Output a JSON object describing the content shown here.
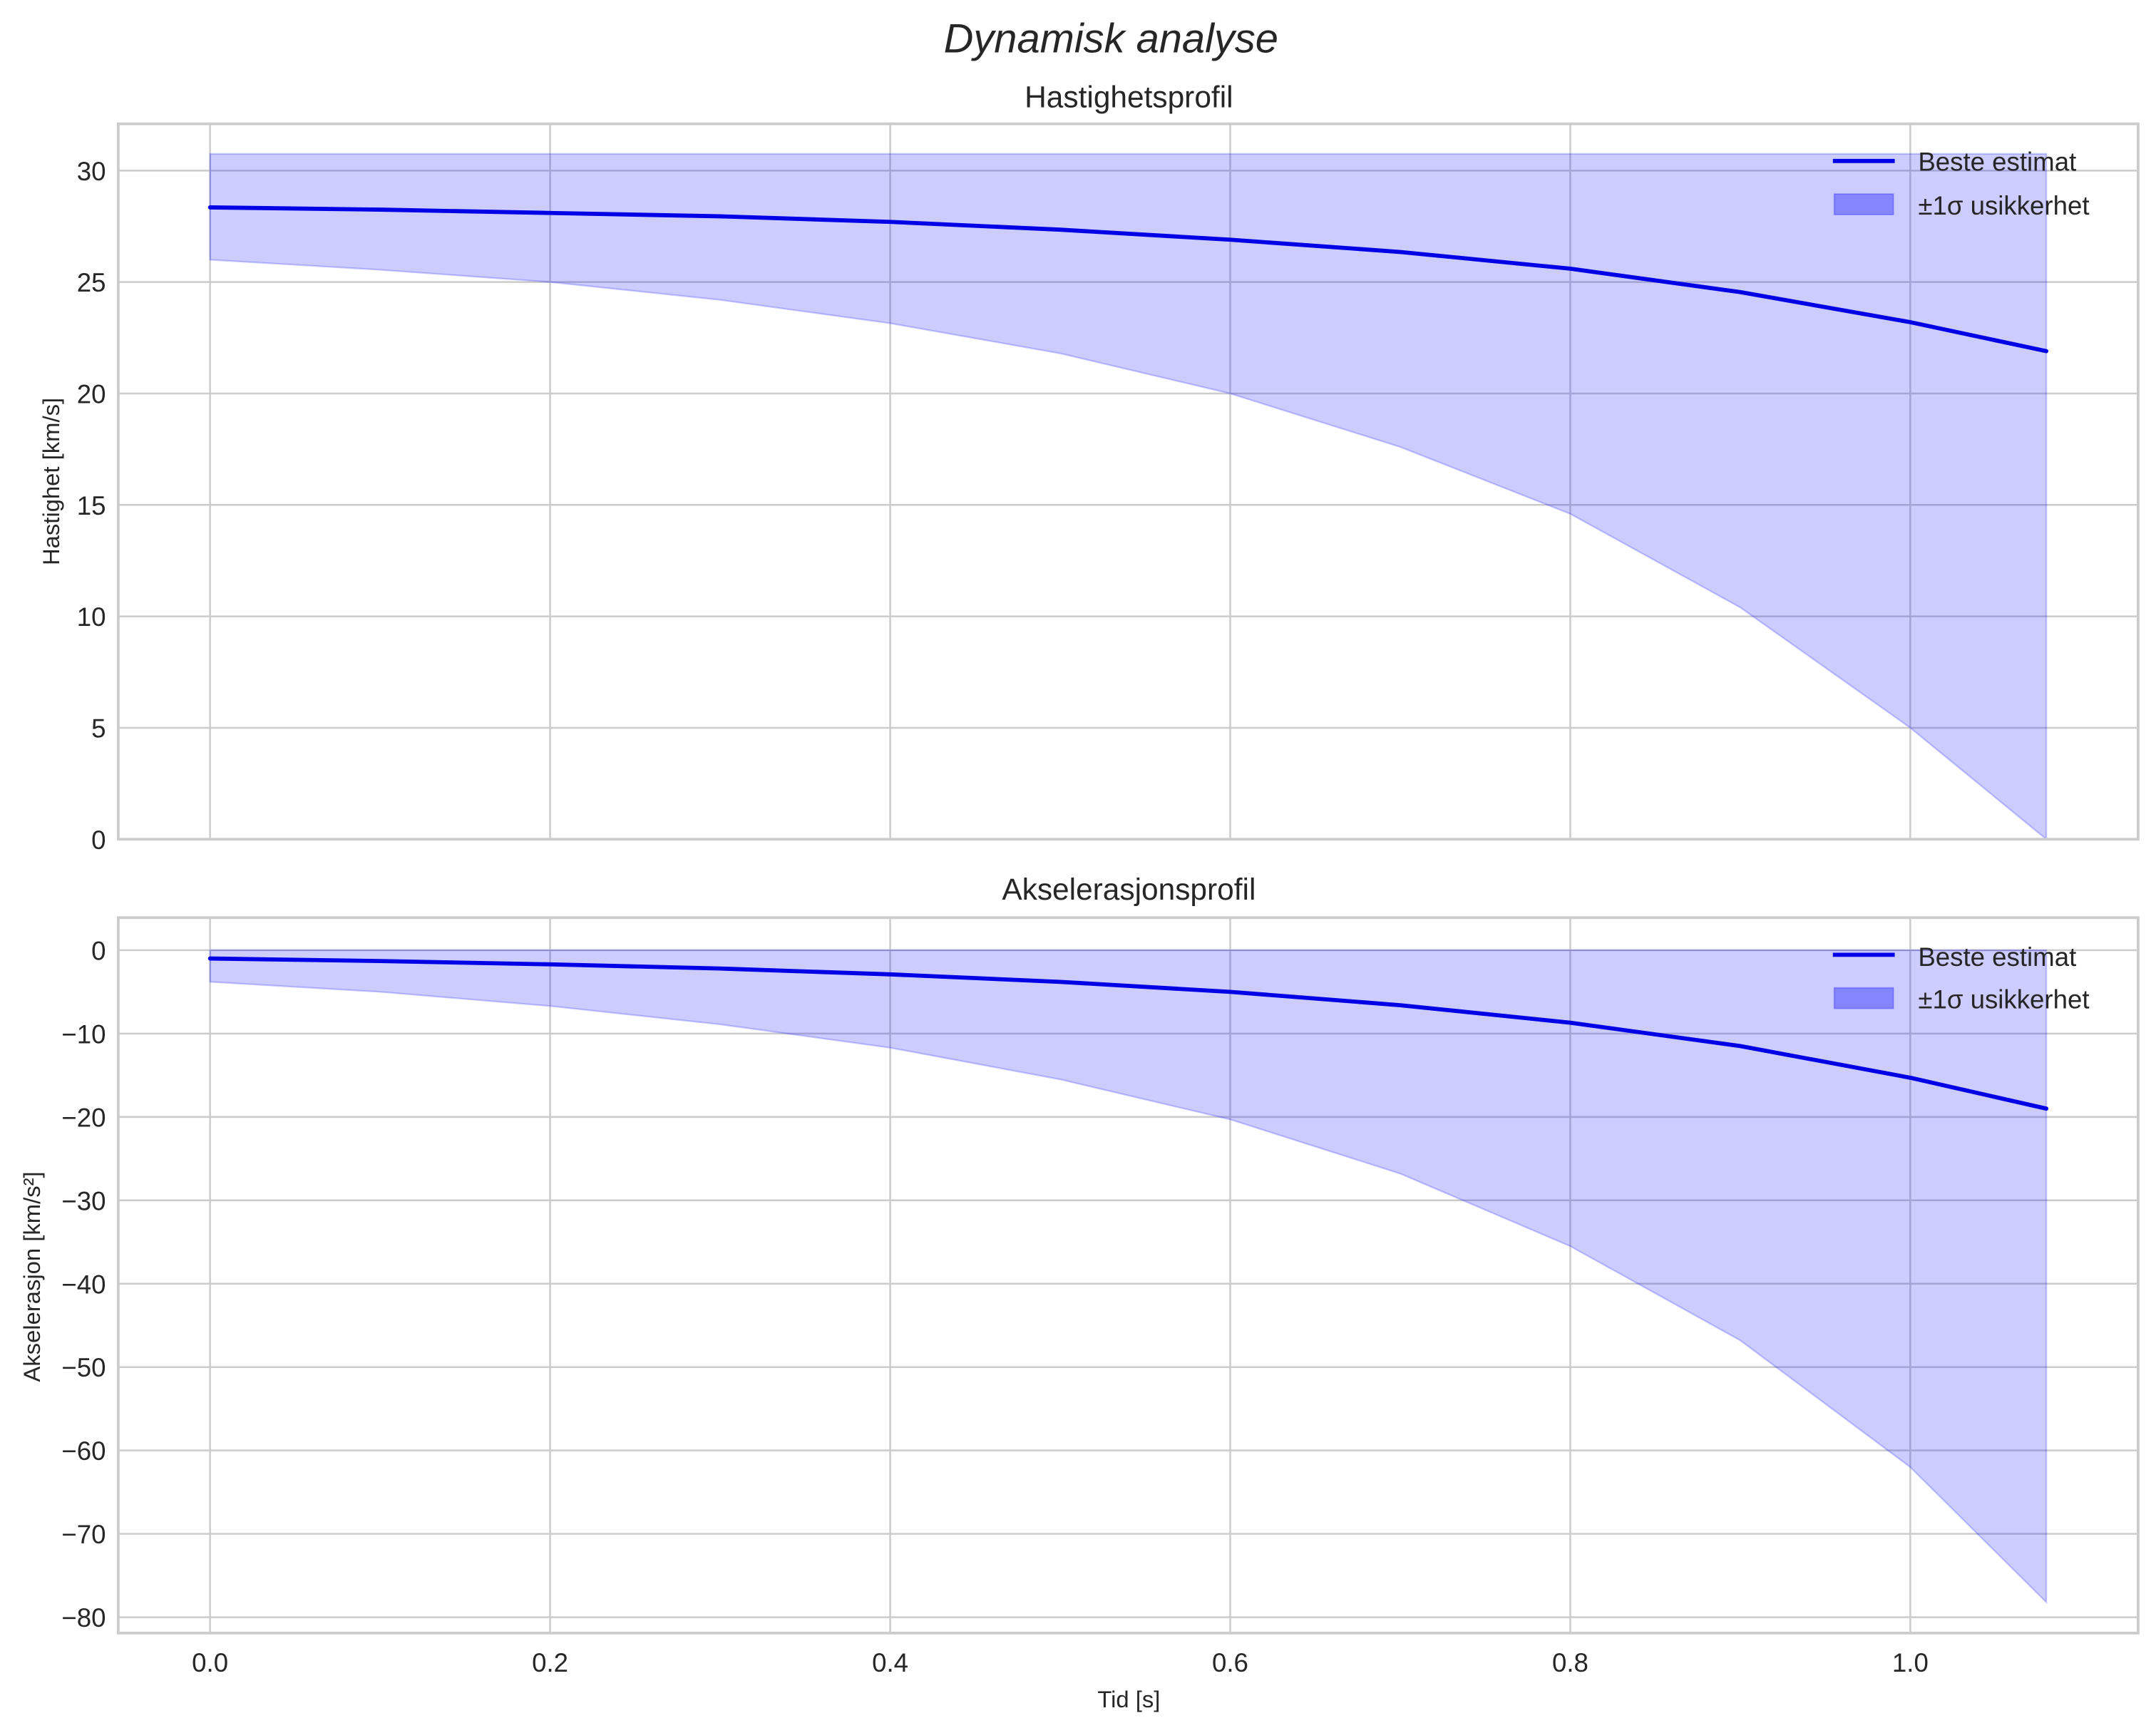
{
  "figure": {
    "suptitle": "Dynamisk analyse",
    "background": "#ffffff"
  },
  "colors": {
    "line": "#0000e6",
    "band_fill": "#0000ff",
    "band_alpha": 0.2,
    "grid": "#cccccc",
    "spine": "#cccccc",
    "text": "#262626"
  },
  "legend": {
    "items": [
      {
        "label": "Beste estimat",
        "type": "line"
      },
      {
        "label": "±1σ usikkerhet",
        "type": "patch"
      }
    ],
    "position": "upper right"
  },
  "chart_data": [
    {
      "type": "line",
      "title": "Hastighetsprofil",
      "xlabel": "",
      "ylabel": "Hastighet [km/s]",
      "xlim": [
        -0.054,
        1.134
      ],
      "ylim": [
        0,
        32.1
      ],
      "xticks": [
        0.0,
        0.2,
        0.4,
        0.6,
        0.8,
        1.0
      ],
      "xtick_labels": [
        "0.0",
        "0.2",
        "0.4",
        "0.6",
        "0.8",
        "1.0"
      ],
      "show_xtick_labels": false,
      "yticks": [
        0,
        5,
        10,
        15,
        20,
        25,
        30
      ],
      "ytick_labels": [
        "0",
        "5",
        "10",
        "15",
        "20",
        "25",
        "30"
      ],
      "grid": true,
      "legend_position": "upper right",
      "x": [
        0.0,
        0.1,
        0.2,
        0.3,
        0.4,
        0.5,
        0.6,
        0.7,
        0.8,
        0.9,
        1.0,
        1.08
      ],
      "series": [
        {
          "name": "Beste estimat",
          "kind": "line",
          "values": [
            28.35,
            28.25,
            28.1,
            27.95,
            27.7,
            27.35,
            26.9,
            26.35,
            25.6,
            24.55,
            23.2,
            21.9
          ]
        },
        {
          "name": "±1σ usikkerhet",
          "kind": "band",
          "upper": [
            30.75,
            30.75,
            30.75,
            30.75,
            30.75,
            30.75,
            30.75,
            30.75,
            30.75,
            30.75,
            30.75,
            30.75
          ],
          "lower": [
            26.0,
            25.55,
            25.0,
            24.2,
            23.15,
            21.8,
            20.0,
            17.6,
            14.6,
            10.4,
            5.0,
            0.0
          ]
        }
      ]
    },
    {
      "type": "line",
      "title": "Akselerasjonsprofil",
      "xlabel": "Tid [s]",
      "ylabel": "Akselerasjon [km/s²]",
      "xlim": [
        -0.054,
        1.134
      ],
      "ylim": [
        -81.9,
        3.9
      ],
      "xticks": [
        0.0,
        0.2,
        0.4,
        0.6,
        0.8,
        1.0
      ],
      "xtick_labels": [
        "0.0",
        "0.2",
        "0.4",
        "0.6",
        "0.8",
        "1.0"
      ],
      "show_xtick_labels": true,
      "yticks": [
        0,
        -10,
        -20,
        -30,
        -40,
        -50,
        -60,
        -70,
        -80
      ],
      "ytick_labels": [
        "0",
        "−10",
        "−20",
        "−30",
        "−40",
        "−50",
        "−60",
        "−70",
        "−80"
      ],
      "grid": true,
      "legend_position": "upper right",
      "x": [
        0.0,
        0.1,
        0.2,
        0.3,
        0.4,
        0.5,
        0.6,
        0.7,
        0.8,
        0.9,
        1.0,
        1.08
      ],
      "series": [
        {
          "name": "Beste estimat",
          "kind": "line",
          "values": [
            -1.0,
            -1.3,
            -1.7,
            -2.2,
            -2.9,
            -3.8,
            -5.0,
            -6.6,
            -8.7,
            -11.5,
            -15.3,
            -19.0
          ]
        },
        {
          "name": "±1σ usikkerhet",
          "kind": "band",
          "upper": [
            0,
            0,
            0,
            0,
            0,
            0,
            0,
            0,
            0,
            0,
            0,
            0
          ],
          "lower": [
            -3.8,
            -5.0,
            -6.7,
            -8.9,
            -11.7,
            -15.5,
            -20.3,
            -26.8,
            -35.5,
            -46.8,
            -62.0,
            -78.2
          ]
        }
      ]
    }
  ]
}
